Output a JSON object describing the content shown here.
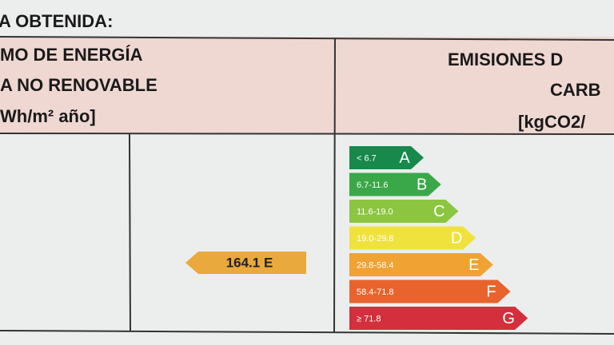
{
  "heading": "A OBTENIDA:",
  "left_header": {
    "lines": [
      "MO DE ENERGÍA",
      "A NO RENOVABLE",
      "Wh/m² año]"
    ]
  },
  "right_header": {
    "lines": [
      "EMISIONES D",
      "CARB",
      "[kgCO2/"
    ]
  },
  "rating": {
    "label": "164.1 E"
  },
  "scale": [
    {
      "range": "< 6.7",
      "letter": "A"
    },
    {
      "range": "6.7-11.6",
      "letter": "B"
    },
    {
      "range": "11.6-19.0",
      "letter": "C"
    },
    {
      "range": "19.0-29.8",
      "letter": "D"
    },
    {
      "range": "29.8-58.4",
      "letter": "E"
    },
    {
      "range": "58.4-71.8",
      "letter": "F"
    },
    {
      "range": "≥ 71.8",
      "letter": "G"
    }
  ]
}
